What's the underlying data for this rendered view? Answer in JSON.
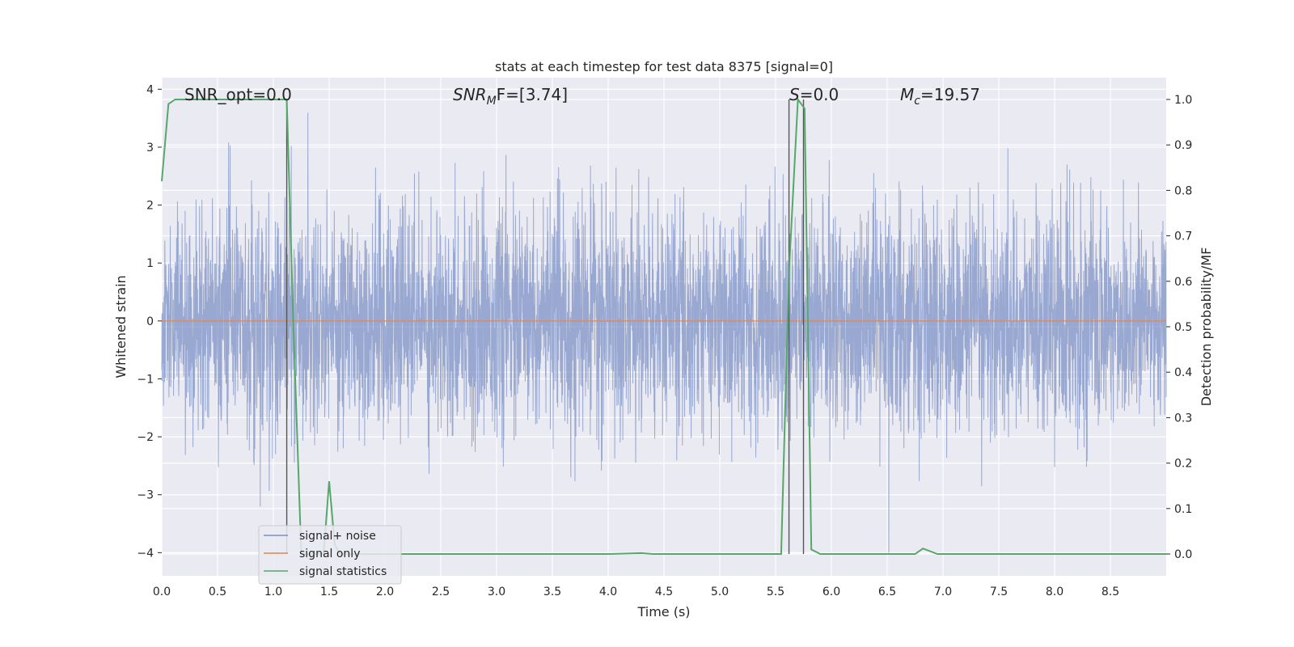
{
  "chart_data": {
    "type": "line",
    "title": "stats at each timestep for test data 8375 [signal=0]",
    "xlabel": "Time (s)",
    "ylabel_left": "Whitened strain",
    "ylabel_right": "Detection probability/MF",
    "xlim": [
      0.0,
      9.0
    ],
    "ylim_left": [
      -4.4,
      4.2
    ],
    "ylim_right": [
      -0.048,
      1.048
    ],
    "xticks": [
      "0.0",
      "0.5",
      "1.0",
      "1.5",
      "2.0",
      "2.5",
      "3.0",
      "3.5",
      "4.0",
      "4.5",
      "5.0",
      "5.5",
      "6.0",
      "6.5",
      "7.0",
      "7.5",
      "8.0",
      "8.5"
    ],
    "yticks_left": [
      "4",
      "3",
      "2",
      "1",
      "0",
      "−1",
      "−2",
      "−3",
      "−4"
    ],
    "yticks_right": [
      "1.0",
      "0.9",
      "0.8",
      "0.7",
      "0.6",
      "0.5",
      "0.4",
      "0.3",
      "0.2",
      "0.1",
      "0.0"
    ],
    "grid": true,
    "legend_placement": "lower-left",
    "annotations": {
      "snr_opt": "SNR_opt=0.0",
      "snr_mf_base": "SNR",
      "snr_mf_sub": "M",
      "snr_mf_rest": "F=[3.74]",
      "s_var": "S",
      "s_rest": "=0.0",
      "mc_var": "M",
      "mc_sub": "c",
      "mc_rest": "=19.57"
    },
    "series": [
      {
        "name": "signal+ noise",
        "color": "#7a8fc4",
        "axis": "left",
        "description": "whitened noise trace, approx. between -2.5 and 2.5 with spikes to about ±3.6",
        "range": [
          -4.0,
          3.8
        ]
      },
      {
        "name": "signal only",
        "color": "#dd8452",
        "axis": "left",
        "x": [
          0.0,
          9.0
        ],
        "y": [
          0.0,
          0.0
        ]
      },
      {
        "name": "signal statistics",
        "color": "#55a868",
        "axis": "right",
        "x": [
          0.0,
          0.06,
          0.12,
          1.08,
          1.12,
          1.18,
          1.25,
          1.35,
          1.45,
          1.5,
          1.55,
          1.6,
          1.7,
          2.0,
          3.0,
          4.0,
          4.3,
          4.4,
          5.0,
          5.55,
          5.62,
          5.7,
          5.76,
          5.82,
          5.9,
          6.0,
          6.6,
          6.75,
          6.82,
          6.95,
          7.1,
          8.0,
          9.0
        ],
        "y": [
          0.82,
          0.99,
          1.0,
          1.0,
          1.0,
          0.5,
          0.0,
          0.0,
          0.0,
          0.16,
          0.02,
          0.0,
          0.0,
          0.0,
          0.0,
          0.0,
          0.002,
          0.0,
          0.0,
          0.0,
          0.62,
          1.0,
          0.98,
          0.01,
          0.0,
          0.0,
          0.0,
          0.0,
          0.012,
          0.0,
          0.0,
          0.0,
          0.0
        ]
      }
    ],
    "vertical_markers_x": [
      1.12,
      5.62,
      5.75
    ]
  }
}
